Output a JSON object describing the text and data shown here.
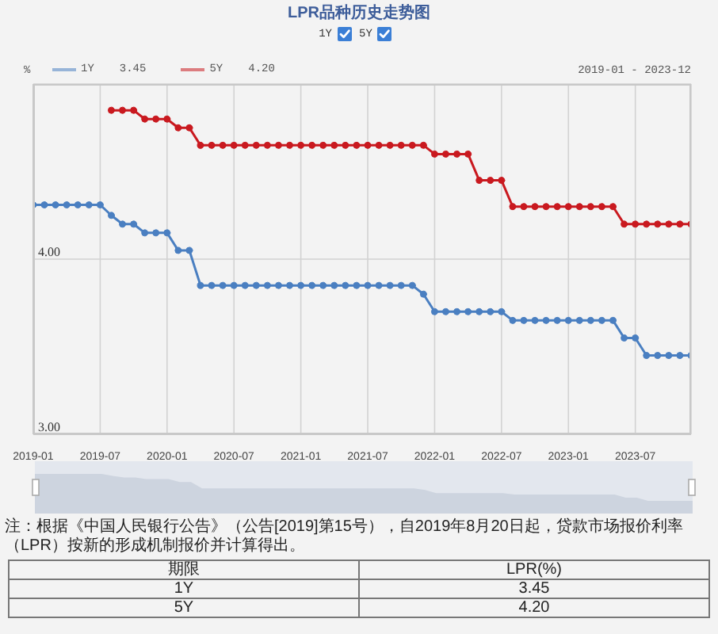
{
  "chart_data": {
    "type": "line",
    "title": "LPR品种历史走势图",
    "ylabel": "%",
    "x": [
      "2019-01",
      "2019-02",
      "2019-03",
      "2019-04",
      "2019-05",
      "2019-06",
      "2019-07",
      "2019-08",
      "2019-09",
      "2019-10",
      "2019-11",
      "2019-12",
      "2020-01",
      "2020-02",
      "2020-03",
      "2020-04",
      "2020-05",
      "2020-06",
      "2020-07",
      "2020-08",
      "2020-09",
      "2020-10",
      "2020-11",
      "2020-12",
      "2021-01",
      "2021-02",
      "2021-03",
      "2021-04",
      "2021-05",
      "2021-06",
      "2021-07",
      "2021-08",
      "2021-09",
      "2021-10",
      "2021-11",
      "2021-12",
      "2022-01",
      "2022-02",
      "2022-03",
      "2022-04",
      "2022-05",
      "2022-06",
      "2022-07",
      "2022-08",
      "2022-09",
      "2022-10",
      "2022-11",
      "2022-12",
      "2023-01",
      "2023-02",
      "2023-03",
      "2023-04",
      "2023-05",
      "2023-06",
      "2023-07",
      "2023-08",
      "2023-09",
      "2023-10",
      "2023-11",
      "2023-12"
    ],
    "series": [
      {
        "name": "1Y",
        "color": "#4a7fc1",
        "values": [
          4.31,
          4.31,
          4.31,
          4.31,
          4.31,
          4.31,
          4.31,
          4.25,
          4.2,
          4.2,
          4.15,
          4.15,
          4.15,
          4.05,
          4.05,
          3.85,
          3.85,
          3.85,
          3.85,
          3.85,
          3.85,
          3.85,
          3.85,
          3.85,
          3.85,
          3.85,
          3.85,
          3.85,
          3.85,
          3.85,
          3.85,
          3.85,
          3.85,
          3.85,
          3.85,
          3.8,
          3.7,
          3.7,
          3.7,
          3.7,
          3.7,
          3.7,
          3.7,
          3.65,
          3.65,
          3.65,
          3.65,
          3.65,
          3.65,
          3.65,
          3.65,
          3.65,
          3.65,
          3.55,
          3.55,
          3.45,
          3.45,
          3.45,
          3.45,
          3.45
        ]
      },
      {
        "name": "5Y",
        "color": "#c9191f",
        "values": [
          null,
          null,
          null,
          null,
          null,
          null,
          null,
          4.85,
          4.85,
          4.85,
          4.8,
          4.8,
          4.8,
          4.75,
          4.75,
          4.65,
          4.65,
          4.65,
          4.65,
          4.65,
          4.65,
          4.65,
          4.65,
          4.65,
          4.65,
          4.65,
          4.65,
          4.65,
          4.65,
          4.65,
          4.65,
          4.65,
          4.65,
          4.65,
          4.65,
          4.65,
          4.6,
          4.6,
          4.6,
          4.6,
          4.45,
          4.45,
          4.45,
          4.3,
          4.3,
          4.3,
          4.3,
          4.3,
          4.3,
          4.3,
          4.3,
          4.3,
          4.3,
          4.2,
          4.2,
          4.2,
          4.2,
          4.2,
          4.2,
          4.2
        ]
      }
    ],
    "xlim": [
      "2019-01",
      "2023-12"
    ],
    "xticks": [
      "2019-01",
      "2019-07",
      "2020-01",
      "2020-07",
      "2021-01",
      "2021-07",
      "2022-01",
      "2022-07",
      "2023-01",
      "2023-07"
    ],
    "ylim": [
      3,
      5
    ],
    "yticks": [
      {
        "value": 3,
        "label": "3.00"
      },
      {
        "value": 4,
        "label": "4.00"
      }
    ],
    "grid": true,
    "legend": "top",
    "marker": "circle",
    "line_style": "solid",
    "annotations": [
      "2019-01 - 2023-12",
      "3.45",
      "4.20",
      "注：根据《中国人民银行公告》（公告[2019]第15号），自2019年8月20日起，贷款市场报价利率（LPR）按新的形成机制报价并计算得出。",
      "期限",
      "LPR(%)"
    ]
  }
}
